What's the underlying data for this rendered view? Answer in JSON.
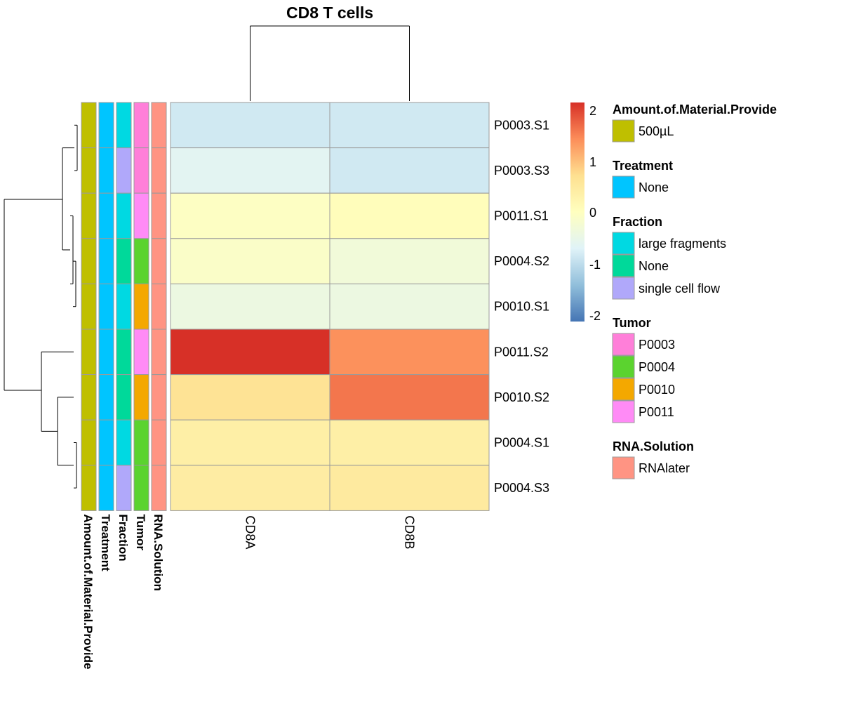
{
  "chart_data": {
    "type": "heatmap",
    "title": "CD8 T cells",
    "rows": [
      "P0003.S1",
      "P0003.S3",
      "P0011.S1",
      "P0004.S2",
      "P0010.S1",
      "P0011.S2",
      "P0010.S2",
      "P0004.S1",
      "P0004.S3"
    ],
    "columns": [
      "CD8A",
      "CD8B"
    ],
    "values": [
      [
        -0.8,
        -0.8
      ],
      [
        -0.6,
        -0.8
      ],
      [
        -0.05,
        0.05
      ],
      [
        -0.1,
        -0.3
      ],
      [
        -0.4,
        -0.4
      ],
      [
        2.0,
        1.3
      ],
      [
        0.6,
        1.5
      ],
      [
        0.35,
        0.35
      ],
      [
        0.4,
        0.45
      ]
    ],
    "color_scale": {
      "min": -2,
      "max": 2,
      "ticks": [
        "2",
        "1",
        "0",
        "-1",
        "-2"
      ],
      "stops": [
        "#4575B4",
        "#91BFDB",
        "#E0F3F8",
        "#FFFFBF",
        "#FEE090",
        "#FC8D59",
        "#D73027"
      ]
    },
    "annotation_tracks": [
      {
        "name": "Amount.of.Material.Provide",
        "values": [
          "500µL",
          "500µL",
          "500µL",
          "500µL",
          "500µL",
          "500µL",
          "500µL",
          "500µL",
          "500µL"
        ]
      },
      {
        "name": "Treatment",
        "values": [
          "None",
          "None",
          "None",
          "None",
          "None",
          "None",
          "None",
          "None",
          "None"
        ]
      },
      {
        "name": "Fraction",
        "values": [
          "large fragments",
          "single cell flow",
          "large fragments",
          "None",
          "large fragments",
          "None",
          "None",
          "large fragments",
          "single cell flow"
        ]
      },
      {
        "name": "Tumor",
        "values": [
          "P0003",
          "P0003",
          "P0011",
          "P0004",
          "P0010",
          "P0011",
          "P0010",
          "P0004",
          "P0004"
        ]
      },
      {
        "name": "RNA.Solution",
        "values": [
          "RNAlater",
          "RNAlater",
          "RNAlater",
          "RNAlater",
          "RNAlater",
          "RNAlater",
          "RNAlater",
          "RNAlater",
          "RNAlater"
        ]
      }
    ],
    "legend": [
      {
        "title": "Amount.of.Material.Provide",
        "items": [
          {
            "label": "500µL",
            "color": "#BFBF00"
          }
        ]
      },
      {
        "title": "Treatment",
        "items": [
          {
            "label": "None",
            "color": "#00C5FF"
          }
        ]
      },
      {
        "title": "Fraction",
        "items": [
          {
            "label": "large fragments",
            "color": "#00D9E2"
          },
          {
            "label": "None",
            "color": "#00D99A"
          },
          {
            "label": "single cell flow",
            "color": "#B0A8FA"
          }
        ]
      },
      {
        "title": "Tumor",
        "items": [
          {
            "label": "P0003",
            "color": "#FF7FD9"
          },
          {
            "label": "P0004",
            "color": "#5BD32F"
          },
          {
            "label": "P0010",
            "color": "#F4A800"
          },
          {
            "label": "P0011",
            "color": "#FF8BF6"
          }
        ]
      },
      {
        "title": "RNA.Solution",
        "items": [
          {
            "label": "RNAlater",
            "color": "#FF9483"
          }
        ]
      }
    ],
    "row_dendrogram": true,
    "column_dendrogram": true,
    "legend_placement": "right"
  }
}
